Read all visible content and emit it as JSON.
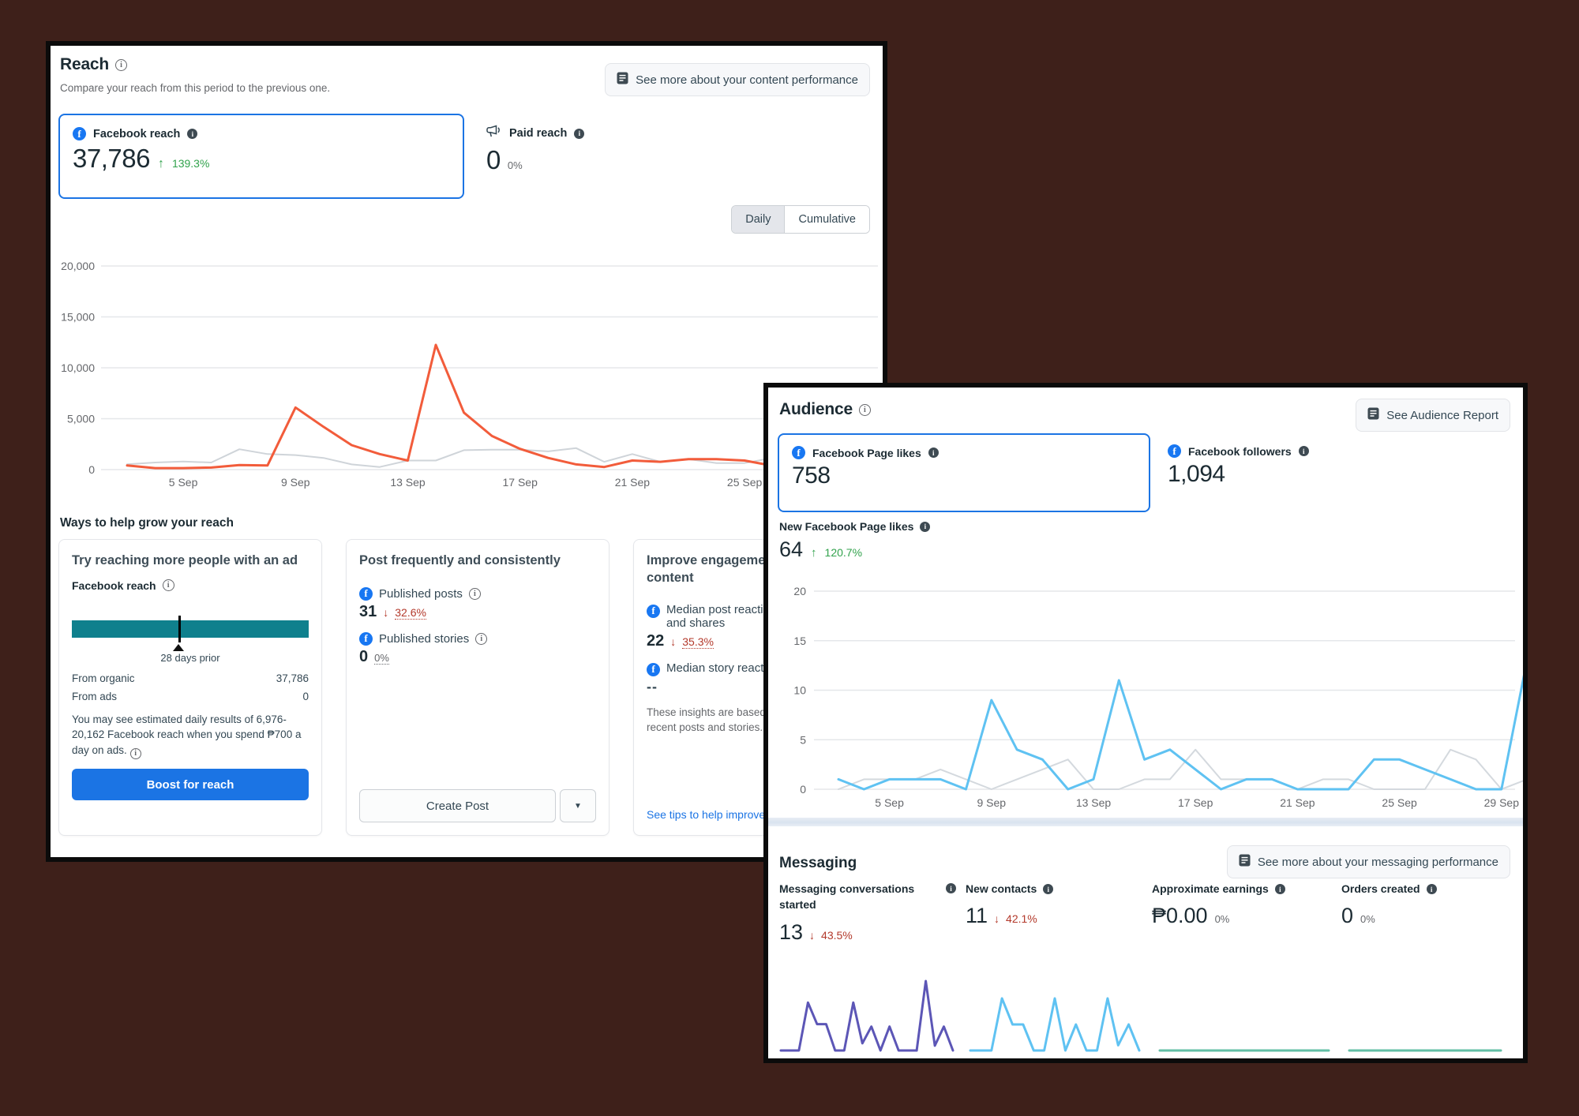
{
  "background": {
    "color": "#3E201A"
  },
  "reach_panel": {
    "title": "Reach",
    "subtitle": "Compare your reach from this period to the previous one.",
    "see_more_button": "See more about your content performance",
    "facebook_reach": {
      "label": "Facebook reach",
      "value": "37,786",
      "arrow": "↑",
      "delta": "139.3%"
    },
    "paid_reach": {
      "label": "Paid reach",
      "value": "0",
      "delta": "0%"
    },
    "toggle": {
      "options": [
        "Daily",
        "Cumulative"
      ],
      "selected": "Daily"
    },
    "ways_heading": "Ways to help grow your reach",
    "ad_card": {
      "title": "Try reaching more people with an ad",
      "metric_label": "Facebook reach",
      "marker_label": "28 days prior",
      "rows": [
        {
          "label": "From organic",
          "value": "37,786"
        },
        {
          "label": "From ads",
          "value": "0"
        }
      ],
      "note": "You may see estimated daily results of 6,976-20,162 Facebook reach when you spend ₱700 a day on ads.",
      "button": "Boost for reach",
      "bar_color": "#0F808D"
    },
    "post_card": {
      "title": "Post frequently and consistently",
      "items": [
        {
          "label": "Published posts",
          "value": "31",
          "arrow": "↓",
          "delta": "32.6%"
        },
        {
          "label": "Published stories",
          "value": "0",
          "delta": "0%"
        }
      ],
      "button": "Create Post",
      "dropdown_icon": "▼"
    },
    "engagement_card": {
      "title": "Improve engagement with your content",
      "items": [
        {
          "label": "Median post reactions, comments and shares",
          "value": "22",
          "arrow": "↓",
          "delta": "35.3%"
        },
        {
          "label": "Median story reactions and shares",
          "value": "--"
        }
      ],
      "note": "These insights are based on your most recent posts and stories.",
      "link": "See tips to help improve your content"
    }
  },
  "audience_panel": {
    "title": "Audience",
    "report_button": "See Audience Report",
    "page_likes": {
      "label": "Facebook Page likes",
      "value": "758"
    },
    "followers": {
      "label": "Facebook followers",
      "value": "1,094"
    },
    "new_likes": {
      "label": "New Facebook Page likes",
      "value": "64",
      "arrow": "↑",
      "delta": "120.7%"
    }
  },
  "messaging": {
    "title": "Messaging",
    "see_more_button": "See more about your messaging performance",
    "metrics": [
      {
        "label": "Messaging conversations started",
        "value": "13",
        "arrow": "↓",
        "delta": "43.5%"
      },
      {
        "label": "New contacts",
        "value": "11",
        "arrow": "↓",
        "delta": "42.1%"
      },
      {
        "label": "Approximate earnings",
        "value": "₱0.00",
        "delta": "0%"
      },
      {
        "label": "Orders created",
        "value": "0",
        "delta": "0%"
      }
    ]
  },
  "chart_data": [
    {
      "type": "line",
      "title": "Facebook reach — Daily",
      "categories": [
        "3 Sep",
        "4 Sep",
        "5 Sep",
        "6 Sep",
        "7 Sep",
        "8 Sep",
        "9 Sep",
        "10 Sep",
        "11 Sep",
        "12 Sep",
        "13 Sep",
        "14 Sep",
        "15 Sep",
        "16 Sep",
        "17 Sep",
        "18 Sep",
        "19 Sep",
        "20 Sep",
        "21 Sep",
        "22 Sep",
        "23 Sep",
        "24 Sep",
        "25 Sep",
        "26 Sep",
        "27 Sep",
        "28 Sep",
        "29 Sep",
        "30 Sep"
      ],
      "series": [
        {
          "name": "Current period",
          "color": "#F25C3B",
          "values": [
            400,
            150,
            150,
            200,
            450,
            400,
            6100,
            4200,
            2400,
            1530,
            890,
            12250,
            5600,
            3300,
            2040,
            1150,
            510,
            255,
            890,
            765,
            1020,
            1020,
            890,
            380,
            300,
            250,
            200,
            150
          ]
        },
        {
          "name": "Previous period",
          "color": "#CFD4D9",
          "values": [
            530,
            700,
            790,
            700,
            2000,
            1530,
            1430,
            1150,
            510,
            255,
            890,
            890,
            1910,
            1960,
            1960,
            1790,
            2110,
            765,
            1530,
            765,
            1020,
            640,
            640,
            1150,
            1400,
            1500,
            1200,
            1350
          ]
        }
      ],
      "ytick_values": [
        0,
        5000,
        10000,
        15000,
        20000
      ],
      "ytick_labels": [
        "0",
        "5,000",
        "10,000",
        "15,000",
        "20,000"
      ],
      "ylim": [
        0,
        20000
      ],
      "xticks": [
        "5 Sep",
        "9 Sep",
        "13 Sep",
        "17 Sep",
        "21 Sep",
        "25 Sep",
        "29 Sep"
      ],
      "grid": true,
      "legend": "none"
    },
    {
      "type": "line",
      "title": "New Facebook Page likes — Daily",
      "categories": [
        "3 Sep",
        "4 Sep",
        "5 Sep",
        "6 Sep",
        "7 Sep",
        "8 Sep",
        "9 Sep",
        "10 Sep",
        "11 Sep",
        "12 Sep",
        "13 Sep",
        "14 Sep",
        "15 Sep",
        "16 Sep",
        "17 Sep",
        "18 Sep",
        "19 Sep",
        "20 Sep",
        "21 Sep",
        "22 Sep",
        "23 Sep",
        "24 Sep",
        "25 Sep",
        "26 Sep",
        "27 Sep",
        "28 Sep",
        "29 Sep",
        "30 Sep"
      ],
      "series": [
        {
          "name": "Current period",
          "color": "#5FC2F2",
          "values": [
            1,
            0,
            1,
            1,
            1,
            0,
            9,
            4,
            3,
            0,
            1,
            11,
            3,
            4,
            2,
            0,
            1,
            1,
            0,
            0,
            0,
            3,
            3,
            2,
            1,
            0,
            0,
            13
          ]
        },
        {
          "name": "Previous period",
          "color": "#D4D9DE",
          "values": [
            0,
            1,
            1,
            1,
            2,
            1,
            0,
            1,
            2,
            3,
            0,
            0,
            1,
            1,
            4,
            1,
            1,
            1,
            0,
            1,
            1,
            0,
            0,
            0,
            4,
            3,
            0,
            1
          ]
        }
      ],
      "ytick_values": [
        0,
        5,
        10,
        15,
        20
      ],
      "ytick_labels": [
        "0",
        "5",
        "10",
        "15",
        "20"
      ],
      "ylim": [
        0,
        20
      ],
      "xticks": [
        "5 Sep",
        "9 Sep",
        "13 Sep",
        "17 Sep",
        "21 Sep",
        "25 Sep",
        "29 Sep"
      ],
      "grid": true,
      "legend": "none"
    },
    {
      "type": "line",
      "sparkline": true,
      "title": "Messaging conversations started sparkline",
      "series": [
        {
          "name": "Messaging conversations started",
          "color": "#5C56B6",
          "values": [
            0,
            0,
            0,
            2,
            1.1,
            1.1,
            0,
            0,
            2,
            0.3,
            1,
            0,
            1,
            0,
            0,
            0,
            2.9,
            0.2,
            1,
            0
          ]
        }
      ]
    },
    {
      "type": "line",
      "sparkline": true,
      "title": "New contacts sparkline",
      "series": [
        {
          "name": "New contacts",
          "color": "#5FC2F2",
          "values": [
            0,
            0,
            0,
            3,
            1.5,
            1.5,
            0,
            0,
            3,
            0,
            1.5,
            0,
            0,
            3,
            0.3,
            1.5,
            0
          ]
        }
      ]
    },
    {
      "type": "line",
      "sparkline": true,
      "title": "Approximate earnings sparkline",
      "series": [
        {
          "name": "Approximate earnings",
          "color": "#63BFA6",
          "values": [
            0,
            0
          ]
        }
      ]
    },
    {
      "type": "line",
      "sparkline": true,
      "title": "Orders created sparkline",
      "series": [
        {
          "name": "Orders created",
          "color": "#63BFA6",
          "values": [
            0,
            0
          ]
        }
      ]
    }
  ]
}
